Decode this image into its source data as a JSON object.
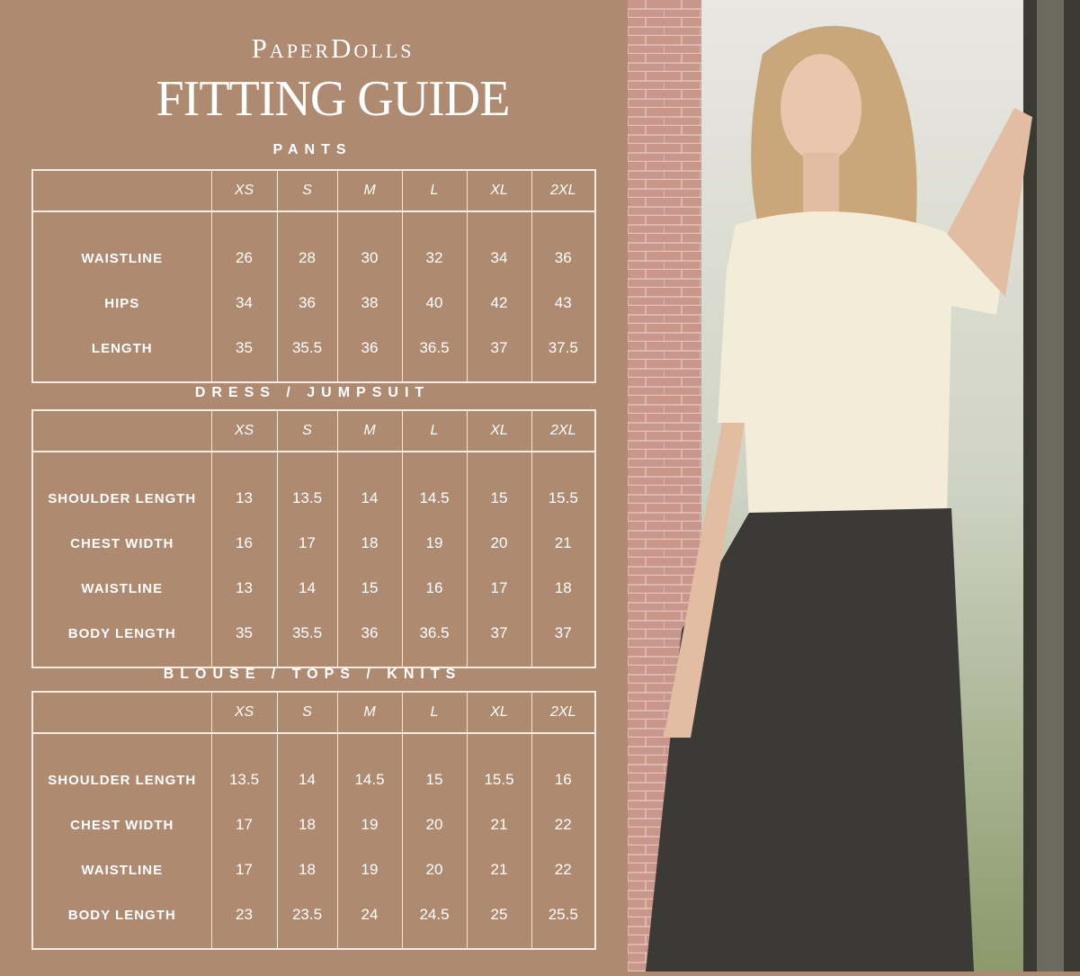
{
  "brand": "PaperDolls",
  "title": "FITTING GUIDE",
  "sizes": [
    "XS",
    "S",
    "M",
    "L",
    "XL",
    "2XL"
  ],
  "sections": [
    {
      "title": "PANTS",
      "rows": [
        {
          "label": "WAISTLINE",
          "values": [
            "26",
            "28",
            "30",
            "32",
            "34",
            "36"
          ]
        },
        {
          "label": "HIPS",
          "values": [
            "34",
            "36",
            "38",
            "40",
            "42",
            "43"
          ]
        },
        {
          "label": "LENGTH",
          "values": [
            "35",
            "35.5",
            "36",
            "36.5",
            "37",
            "37.5"
          ]
        }
      ]
    },
    {
      "title": "DRESS / JUMPSUIT",
      "rows": [
        {
          "label": "SHOULDER LENGTH",
          "values": [
            "13",
            "13.5",
            "14",
            "14.5",
            "15",
            "15.5"
          ]
        },
        {
          "label": "CHEST WIDTH",
          "values": [
            "16",
            "17",
            "18",
            "19",
            "20",
            "21"
          ]
        },
        {
          "label": "WAISTLINE",
          "values": [
            "13",
            "14",
            "15",
            "16",
            "17",
            "18"
          ]
        },
        {
          "label": "BODY LENGTH",
          "values": [
            "35",
            "35.5",
            "36",
            "36.5",
            "37",
            "37"
          ]
        }
      ]
    },
    {
      "title": "BLOUSE / TOPS / KNITS",
      "rows": [
        {
          "label": "SHOULDER LENGTH",
          "values": [
            "13.5",
            "14",
            "14.5",
            "15",
            "15.5",
            "16"
          ]
        },
        {
          "label": "CHEST WIDTH",
          "values": [
            "17",
            "18",
            "19",
            "20",
            "21",
            "22"
          ]
        },
        {
          "label": "WAISTLINE",
          "values": [
            "17",
            "18",
            "19",
            "20",
            "21",
            "22"
          ]
        },
        {
          "label": "BODY LENGTH",
          "values": [
            "23",
            "23.5",
            "24",
            "24.5",
            "25",
            "25.5"
          ]
        }
      ]
    }
  ],
  "colors": {
    "background": "#ae8a70",
    "text": "#ffffff"
  }
}
